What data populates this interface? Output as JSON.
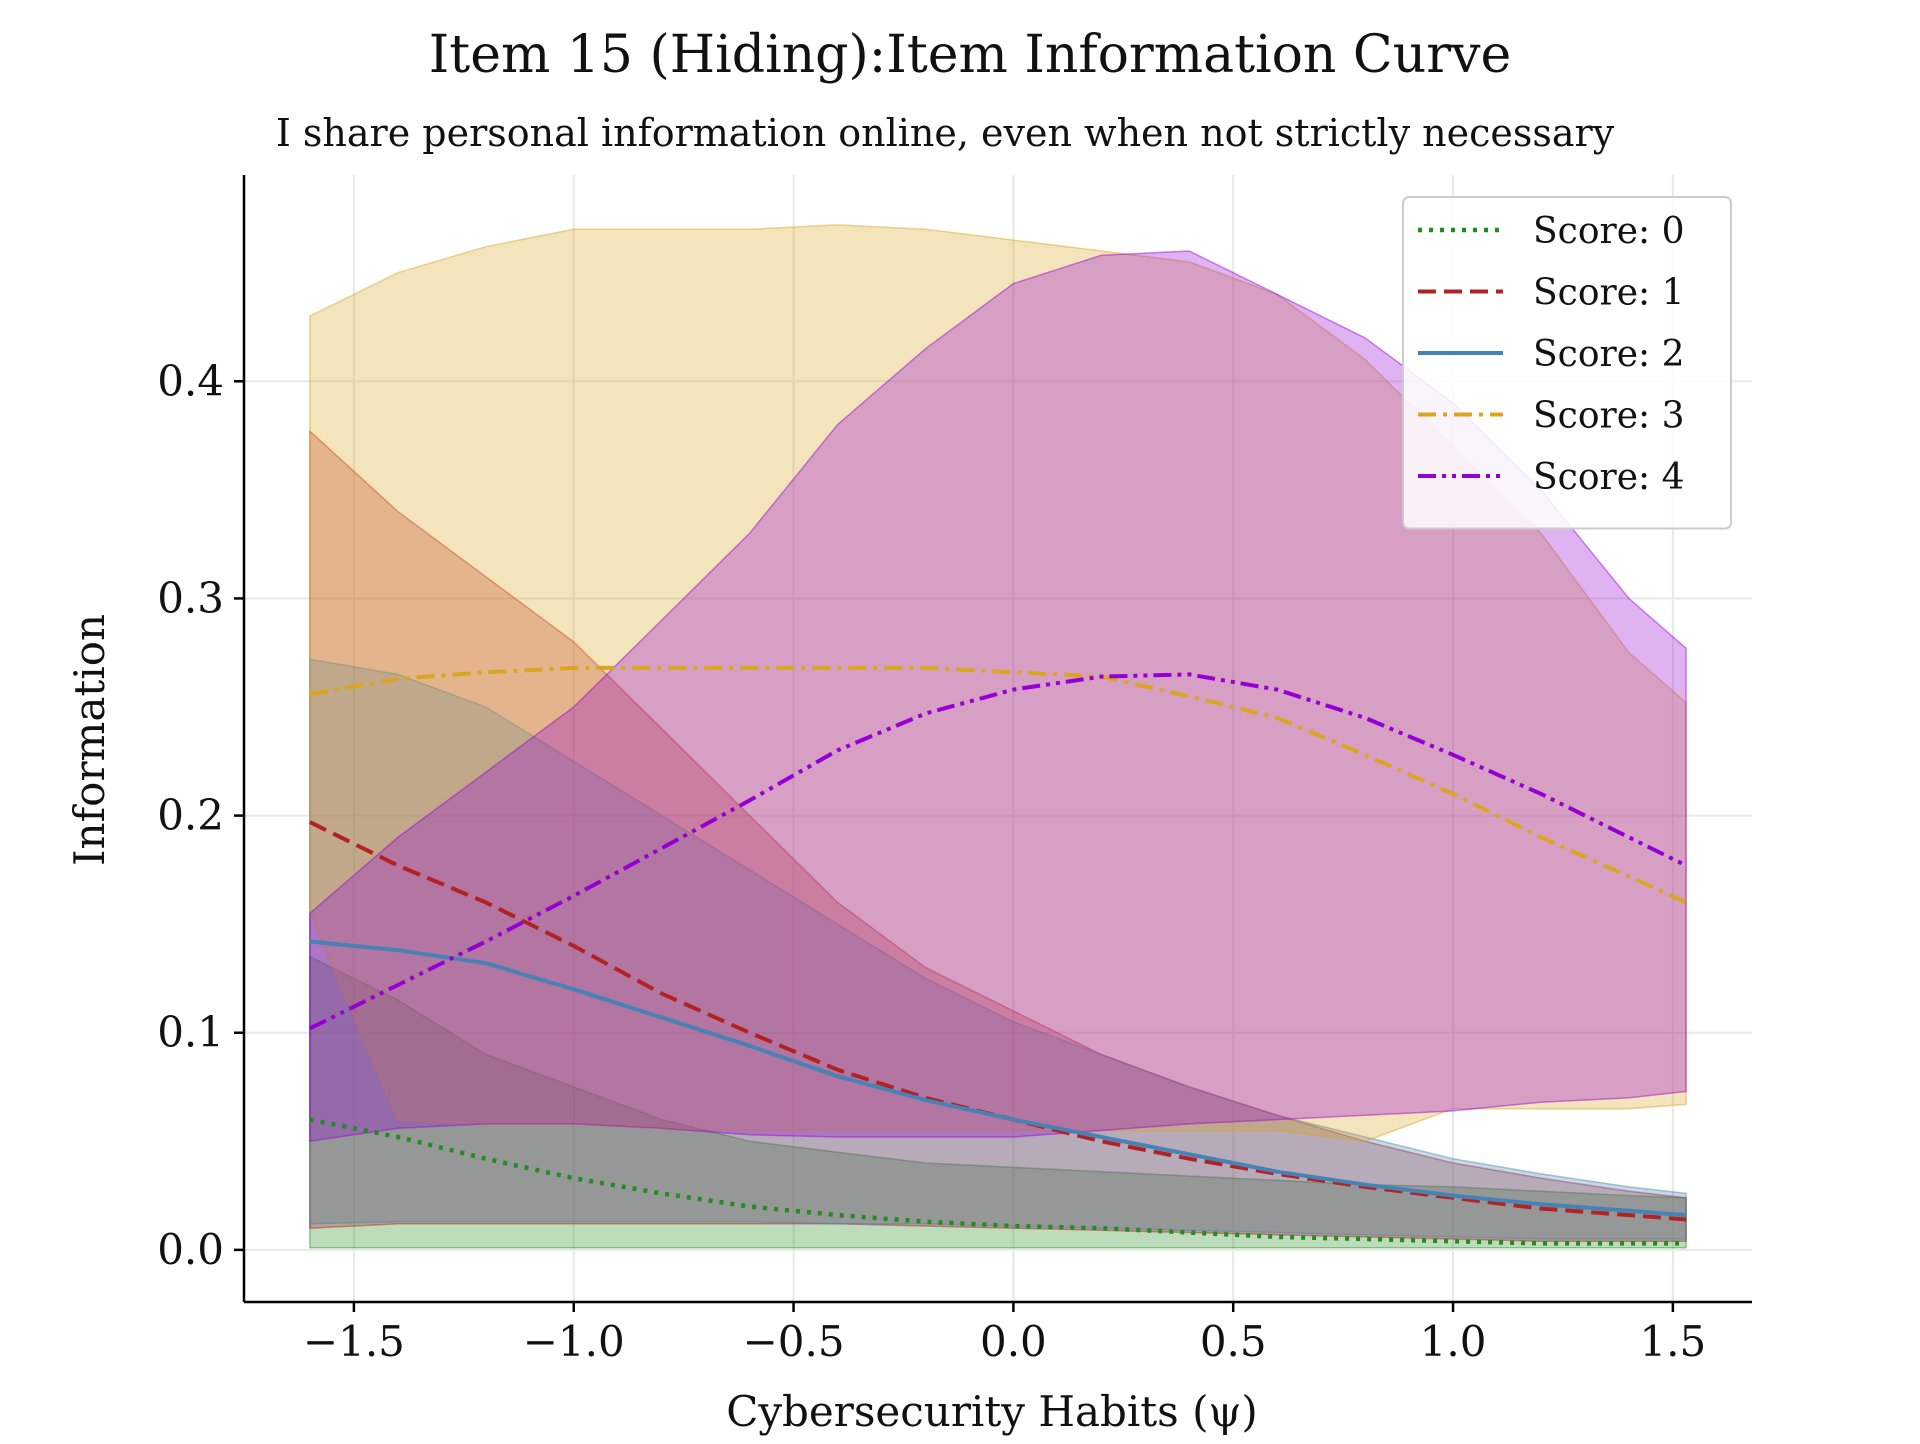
{
  "chart_data": {
    "type": "line",
    "title": "Item 15 (Hiding):Item Information Curve",
    "subtitle": "I share personal information online, even when not strictly necessary",
    "xlabel": "Cybersecurity Habits (ψ)",
    "ylabel": "Information",
    "xlim": [
      -1.75,
      1.68
    ],
    "ylim": [
      -0.024,
      0.495
    ],
    "grid": true,
    "legend_position": "top-right",
    "x_ticks": [
      -1.5,
      -1.0,
      -0.5,
      0.0,
      0.5,
      1.0,
      1.5
    ],
    "x_tick_labels": [
      "−1.5",
      "−1.0",
      "−0.5",
      "0.0",
      "0.5",
      "1.0",
      "1.5"
    ],
    "y_ticks": [
      0.0,
      0.1,
      0.2,
      0.3,
      0.4
    ],
    "y_tick_labels": [
      "0.0",
      "0.1",
      "0.2",
      "0.3",
      "0.4"
    ],
    "x": [
      -1.6,
      -1.4,
      -1.2,
      -1.0,
      -0.8,
      -0.6,
      -0.4,
      -0.2,
      0.0,
      0.2,
      0.4,
      0.6,
      0.8,
      1.0,
      1.2,
      1.4,
      1.53
    ],
    "series": [
      {
        "name": "Score: 0",
        "color": "#228B22",
        "dash": "dotted",
        "values": [
          0.06,
          0.052,
          0.042,
          0.033,
          0.026,
          0.02,
          0.016,
          0.013,
          0.011,
          0.01,
          0.008,
          0.006,
          0.005,
          0.004,
          0.003,
          0.003,
          0.003
        ],
        "upper": [
          0.135,
          0.115,
          0.09,
          0.075,
          0.06,
          0.05,
          0.045,
          0.04,
          0.038,
          0.036,
          0.034,
          0.032,
          0.03,
          0.029,
          0.027,
          0.025,
          0.024
        ],
        "lower": [
          0.001,
          0.001,
          0.001,
          0.001,
          0.001,
          0.001,
          0.001,
          0.001,
          0.001,
          0.001,
          0.001,
          0.001,
          0.001,
          0.001,
          0.001,
          0.001,
          0.001
        ]
      },
      {
        "name": "Score: 1",
        "color": "#B22222",
        "dash": "dashed",
        "values": [
          0.197,
          0.177,
          0.16,
          0.14,
          0.118,
          0.1,
          0.083,
          0.07,
          0.06,
          0.05,
          0.042,
          0.035,
          0.029,
          0.024,
          0.019,
          0.016,
          0.014
        ],
        "upper": [
          0.377,
          0.34,
          0.31,
          0.28,
          0.24,
          0.2,
          0.16,
          0.13,
          0.11,
          0.09,
          0.075,
          0.062,
          0.05,
          0.04,
          0.033,
          0.027,
          0.024
        ],
        "lower": [
          0.01,
          0.012,
          0.012,
          0.012,
          0.012,
          0.012,
          0.012,
          0.011,
          0.01,
          0.009,
          0.008,
          0.007,
          0.006,
          0.005,
          0.004,
          0.004,
          0.004
        ]
      },
      {
        "name": "Score: 2",
        "color": "#4682B4",
        "dash": "solid",
        "values": [
          0.142,
          0.138,
          0.132,
          0.12,
          0.107,
          0.094,
          0.08,
          0.069,
          0.06,
          0.052,
          0.044,
          0.036,
          0.03,
          0.025,
          0.021,
          0.018,
          0.016
        ],
        "upper": [
          0.272,
          0.265,
          0.25,
          0.225,
          0.2,
          0.175,
          0.15,
          0.125,
          0.105,
          0.09,
          0.075,
          0.062,
          0.052,
          0.042,
          0.035,
          0.029,
          0.026
        ],
        "lower": [
          0.012,
          0.013,
          0.013,
          0.013,
          0.013,
          0.013,
          0.012,
          0.012,
          0.011,
          0.01,
          0.009,
          0.008,
          0.007,
          0.006,
          0.005,
          0.005,
          0.005
        ]
      },
      {
        "name": "Score: 3",
        "color": "#DAA520",
        "dash": "dashdot",
        "values": [
          0.256,
          0.263,
          0.266,
          0.268,
          0.268,
          0.268,
          0.268,
          0.268,
          0.266,
          0.264,
          0.255,
          0.245,
          0.228,
          0.21,
          0.19,
          0.172,
          0.16
        ],
        "upper": [
          0.43,
          0.45,
          0.462,
          0.47,
          0.47,
          0.47,
          0.472,
          0.47,
          0.465,
          0.46,
          0.455,
          0.44,
          0.41,
          0.37,
          0.33,
          0.275,
          0.252
        ],
        "lower": [
          0.155,
          0.06,
          0.058,
          0.058,
          0.056,
          0.055,
          0.055,
          0.055,
          0.055,
          0.055,
          0.055,
          0.055,
          0.05,
          0.065,
          0.065,
          0.065,
          0.067
        ]
      },
      {
        "name": "Score: 4",
        "color": "#9400D3",
        "dash": "dashdotdot",
        "values": [
          0.102,
          0.122,
          0.142,
          0.163,
          0.185,
          0.207,
          0.23,
          0.247,
          0.258,
          0.264,
          0.265,
          0.258,
          0.245,
          0.228,
          0.21,
          0.19,
          0.177
        ],
        "upper": [
          0.155,
          0.19,
          0.22,
          0.25,
          0.29,
          0.33,
          0.38,
          0.415,
          0.445,
          0.458,
          0.46,
          0.44,
          0.42,
          0.39,
          0.35,
          0.3,
          0.277
        ],
        "lower": [
          0.05,
          0.056,
          0.058,
          0.058,
          0.056,
          0.053,
          0.052,
          0.052,
          0.052,
          0.055,
          0.058,
          0.06,
          0.062,
          0.064,
          0.068,
          0.07,
          0.073
        ]
      }
    ]
  },
  "style": {
    "axis_color": "#000000",
    "grid_color": "#e8e8e8",
    "legend_frame_color": "#cccccc"
  }
}
